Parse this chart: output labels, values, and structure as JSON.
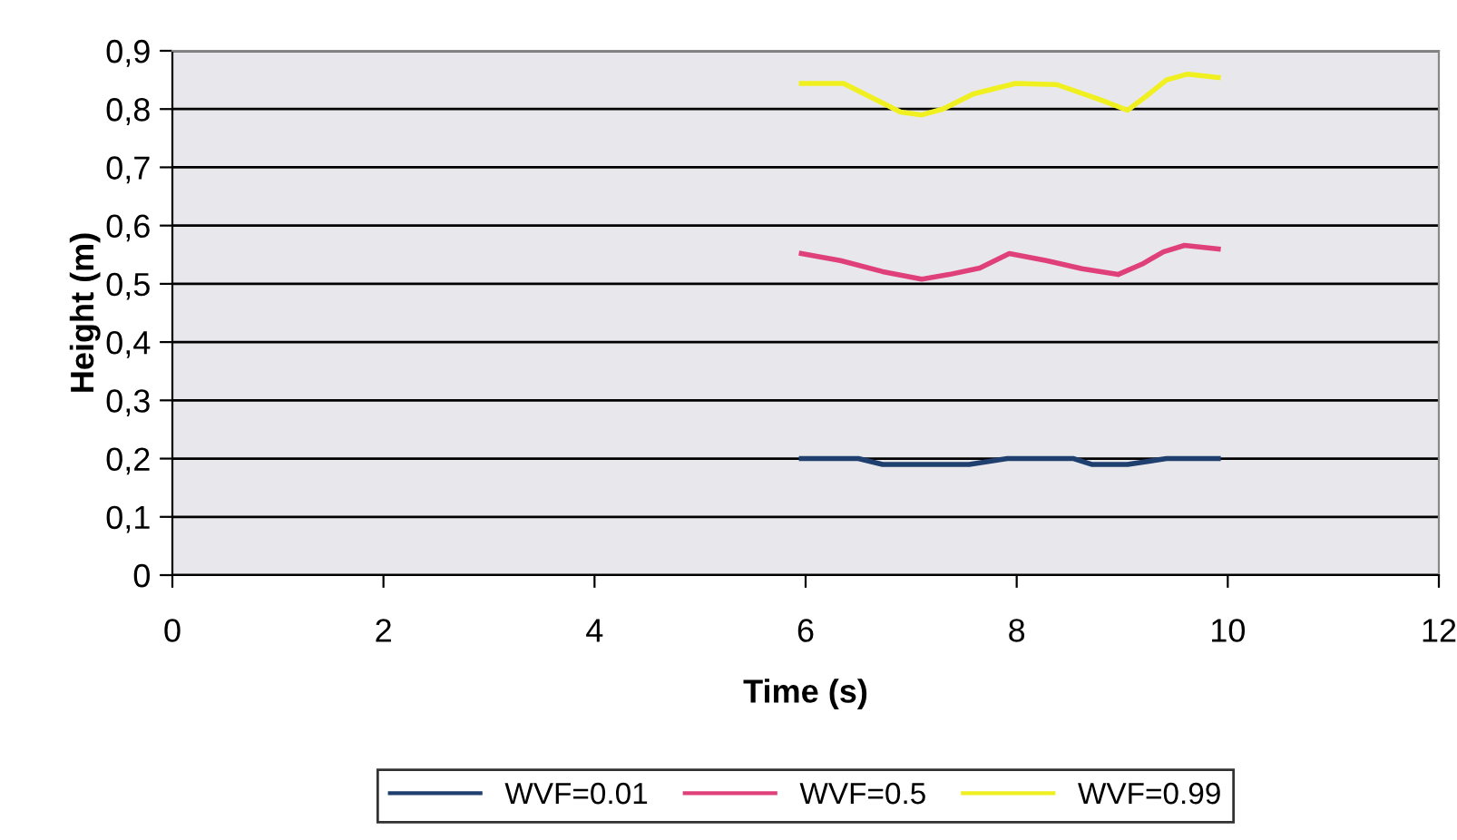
{
  "chart_data": {
    "type": "line",
    "xlabel": "Time (s)",
    "ylabel": "Height (m)",
    "xlim": [
      0,
      12
    ],
    "xticks": [
      0,
      2,
      4,
      6,
      8,
      10,
      12
    ],
    "ylim": [
      0,
      0.9
    ],
    "yticks": [
      {
        "value": 0,
        "label": "0"
      },
      {
        "value": 0.1,
        "label": "0,1"
      },
      {
        "value": 0.2,
        "label": "0,2"
      },
      {
        "value": 0.3,
        "label": "0,3"
      },
      {
        "value": 0.4,
        "label": "0,4"
      },
      {
        "value": 0.5,
        "label": "0,5"
      },
      {
        "value": 0.6,
        "label": "0,6"
      },
      {
        "value": 0.7,
        "label": "0,7"
      },
      {
        "value": 0.8,
        "label": "0,8"
      },
      {
        "value": 0.9,
        "label": "0,9"
      }
    ],
    "grid": "y",
    "legend": "bottom",
    "marker": "none",
    "line_style": "solid",
    "series": [
      {
        "name": "WVF=0.01",
        "color": "#1f3f6e",
        "x": [
          5.96,
          6.5,
          6.73,
          7.55,
          7.91,
          8.54,
          8.71,
          9.05,
          9.42,
          9.91
        ],
        "values": [
          0.2,
          0.2,
          0.19,
          0.19,
          0.2,
          0.2,
          0.19,
          0.19,
          0.2,
          0.2
        ]
      },
      {
        "name": "WVF=0.5",
        "color": "#e0407a",
        "x": [
          5.96,
          6.33,
          6.73,
          7.1,
          7.36,
          7.65,
          7.93,
          8.28,
          8.62,
          8.96,
          9.19,
          9.39,
          9.59,
          9.91
        ],
        "values": [
          0.552,
          0.54,
          0.521,
          0.508,
          0.516,
          0.527,
          0.552,
          0.54,
          0.526,
          0.516,
          0.534,
          0.555,
          0.566,
          0.56
        ]
      },
      {
        "name": "WVF=0.99",
        "color": "#f0f020",
        "x": [
          5.96,
          6.36,
          6.9,
          7.1,
          7.3,
          7.59,
          7.99,
          8.38,
          8.79,
          9.05,
          9.22,
          9.42,
          9.62,
          9.91
        ],
        "values": [
          0.844,
          0.844,
          0.795,
          0.79,
          0.8,
          0.826,
          0.844,
          0.842,
          0.816,
          0.798,
          0.821,
          0.85,
          0.86,
          0.854
        ]
      }
    ]
  }
}
